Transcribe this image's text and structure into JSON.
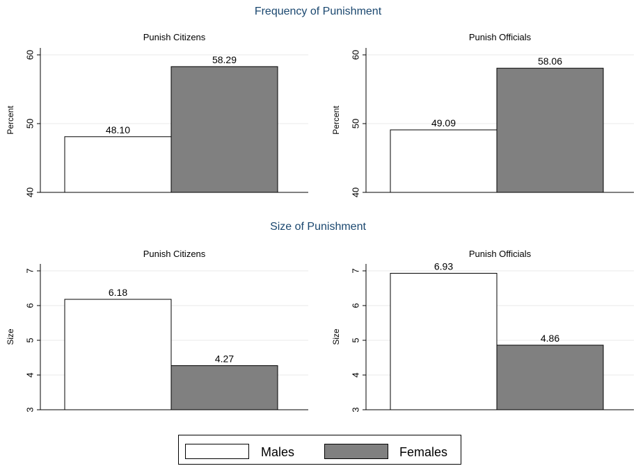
{
  "figure": {
    "section_titles": [
      "Frequency of Punishment",
      "Size of Punishment"
    ]
  },
  "legend": {
    "entries": [
      {
        "label": "Males",
        "color": "#ffffff"
      },
      {
        "label": "Females",
        "color": "#808080"
      }
    ]
  },
  "chart_data": [
    {
      "type": "bar",
      "section": "Frequency of Punishment",
      "title": "Punish Citizens",
      "ylabel": "Percent",
      "ylim": [
        40,
        60
      ],
      "yticks": [
        40,
        50,
        60
      ],
      "series": [
        {
          "name": "Males",
          "values": [
            48.1
          ],
          "color": "#ffffff"
        },
        {
          "name": "Females",
          "values": [
            58.29
          ],
          "color": "#808080"
        }
      ],
      "data_labels": [
        "48.10",
        "58.29"
      ],
      "grid": true
    },
    {
      "type": "bar",
      "section": "Frequency of Punishment",
      "title": "Punish Officials",
      "ylabel": "Percent",
      "ylim": [
        40,
        60
      ],
      "yticks": [
        40,
        50,
        60
      ],
      "series": [
        {
          "name": "Males",
          "values": [
            49.09
          ],
          "color": "#ffffff"
        },
        {
          "name": "Females",
          "values": [
            58.06
          ],
          "color": "#808080"
        }
      ],
      "data_labels": [
        "49.09",
        "58.06"
      ],
      "grid": true
    },
    {
      "type": "bar",
      "section": "Size of Punishment",
      "title": "Punish Citizens",
      "ylabel": "Size",
      "ylim": [
        3,
        7
      ],
      "yticks": [
        3,
        4,
        5,
        6,
        7
      ],
      "series": [
        {
          "name": "Males",
          "values": [
            6.18
          ],
          "color": "#ffffff"
        },
        {
          "name": "Females",
          "values": [
            4.27
          ],
          "color": "#808080"
        }
      ],
      "data_labels": [
        "6.18",
        "4.27"
      ],
      "grid": true
    },
    {
      "type": "bar",
      "section": "Size of Punishment",
      "title": "Punish Officials",
      "ylabel": "Size",
      "ylim": [
        3,
        7
      ],
      "yticks": [
        3,
        4,
        5,
        6,
        7
      ],
      "series": [
        {
          "name": "Males",
          "values": [
            6.93
          ],
          "color": "#ffffff"
        },
        {
          "name": "Females",
          "values": [
            4.86
          ],
          "color": "#808080"
        }
      ],
      "data_labels": [
        "6.93",
        "4.86"
      ],
      "grid": true
    }
  ]
}
